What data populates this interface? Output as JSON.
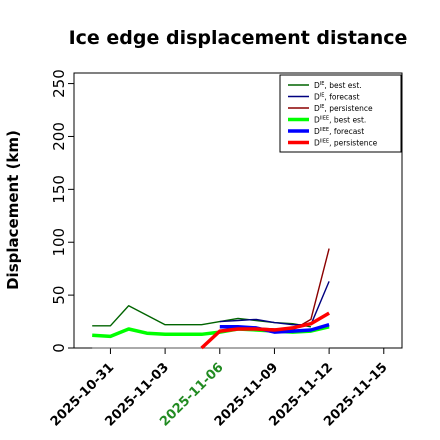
{
  "chart_data": {
    "type": "line",
    "title": "Ice edge displacement distance",
    "ylabel": "Displacement (km)",
    "xlabel": "",
    "ylim": [
      0,
      260
    ],
    "xlim": [
      "2025-10-29",
      "2025-11-16"
    ],
    "yticks": [
      0,
      50,
      100,
      150,
      200,
      250
    ],
    "xticks": [
      {
        "label": "2025-10-31",
        "date": "2025-10-31",
        "color": "#000000"
      },
      {
        "label": "2025-11-03",
        "date": "2025-11-03",
        "color": "#000000"
      },
      {
        "label": "2025-11-06",
        "date": "2025-11-06",
        "color": "#228B22"
      },
      {
        "label": "2025-11-09",
        "date": "2025-11-09",
        "color": "#000000"
      },
      {
        "label": "2025-11-12",
        "date": "2025-11-12",
        "color": "#000000"
      },
      {
        "label": "2025-11-15",
        "date": "2025-11-15",
        "color": "#000000"
      }
    ],
    "grid": false,
    "legend_position": "top-right",
    "series": [
      {
        "key": "baseline",
        "name": "",
        "color": "#555555",
        "width": 1,
        "x": [
          "2025-10-30",
          "2025-11-12"
        ],
        "y": [
          0,
          0
        ]
      },
      {
        "key": "die_best",
        "name": "D",
        "sup": "IE",
        "suffix": ", best est.",
        "color": "#006400",
        "width": 1.4,
        "x": [
          "2025-10-30",
          "2025-10-31",
          "2025-11-01",
          "2025-11-02",
          "2025-11-03",
          "2025-11-04",
          "2025-11-05",
          "2025-11-06",
          "2025-11-07",
          "2025-11-08",
          "2025-11-09",
          "2025-11-10",
          "2025-11-11"
        ],
        "y": [
          21,
          21,
          40,
          31,
          22,
          22,
          22,
          25,
          28,
          26,
          24,
          23,
          20
        ]
      },
      {
        "key": "die_forecast",
        "name": "D",
        "sup": "IE",
        "suffix": ", forecast",
        "color": "#000080",
        "width": 1.4,
        "x": [
          "2025-11-06",
          "2025-11-07",
          "2025-11-08",
          "2025-11-09",
          "2025-11-10",
          "2025-11-11",
          "2025-11-12"
        ],
        "y": [
          25,
          26,
          27,
          24,
          22,
          22,
          63
        ]
      },
      {
        "key": "die_persistence",
        "name": "D",
        "sup": "IE",
        "suffix": ", persistence",
        "color": "#8B0000",
        "width": 1.4,
        "x": [
          "2025-11-07",
          "2025-11-08",
          "2025-11-09",
          "2025-11-10",
          "2025-11-11",
          "2025-11-12"
        ],
        "y": [
          18,
          19,
          18,
          17,
          27,
          94
        ]
      },
      {
        "key": "diiee_best",
        "name": "D",
        "sup": "IIEE",
        "suffix": ", best est.",
        "color": "#00FF00",
        "width": 3.5,
        "x": [
          "2025-10-30",
          "2025-10-31",
          "2025-11-01",
          "2025-11-02",
          "2025-11-03",
          "2025-11-04",
          "2025-11-05",
          "2025-11-06",
          "2025-11-07",
          "2025-11-08",
          "2025-11-09",
          "2025-11-10",
          "2025-11-11",
          "2025-11-12"
        ],
        "y": [
          12,
          11,
          18,
          14,
          13,
          13,
          13,
          15,
          18,
          17,
          16,
          15,
          16,
          20
        ]
      },
      {
        "key": "diiee_forecast",
        "name": "D",
        "sup": "IIEE",
        "suffix": ", forecast",
        "color": "#0000FF",
        "width": 3.5,
        "x": [
          "2025-11-06",
          "2025-11-07",
          "2025-11-08",
          "2025-11-09",
          "2025-11-10",
          "2025-11-11",
          "2025-11-12"
        ],
        "y": [
          20,
          20,
          19,
          15,
          16,
          17,
          22
        ]
      },
      {
        "key": "diiee_persistence",
        "name": "D",
        "sup": "IIEE",
        "suffix": ", persistence",
        "color": "#FF0000",
        "width": 3.5,
        "x": [
          "2025-11-05",
          "2025-11-06",
          "2025-11-07",
          "2025-11-08",
          "2025-11-09",
          "2025-11-10",
          "2025-11-11",
          "2025-11-12"
        ],
        "y": [
          0,
          16,
          18,
          18,
          17,
          19,
          23,
          33
        ]
      }
    ]
  }
}
